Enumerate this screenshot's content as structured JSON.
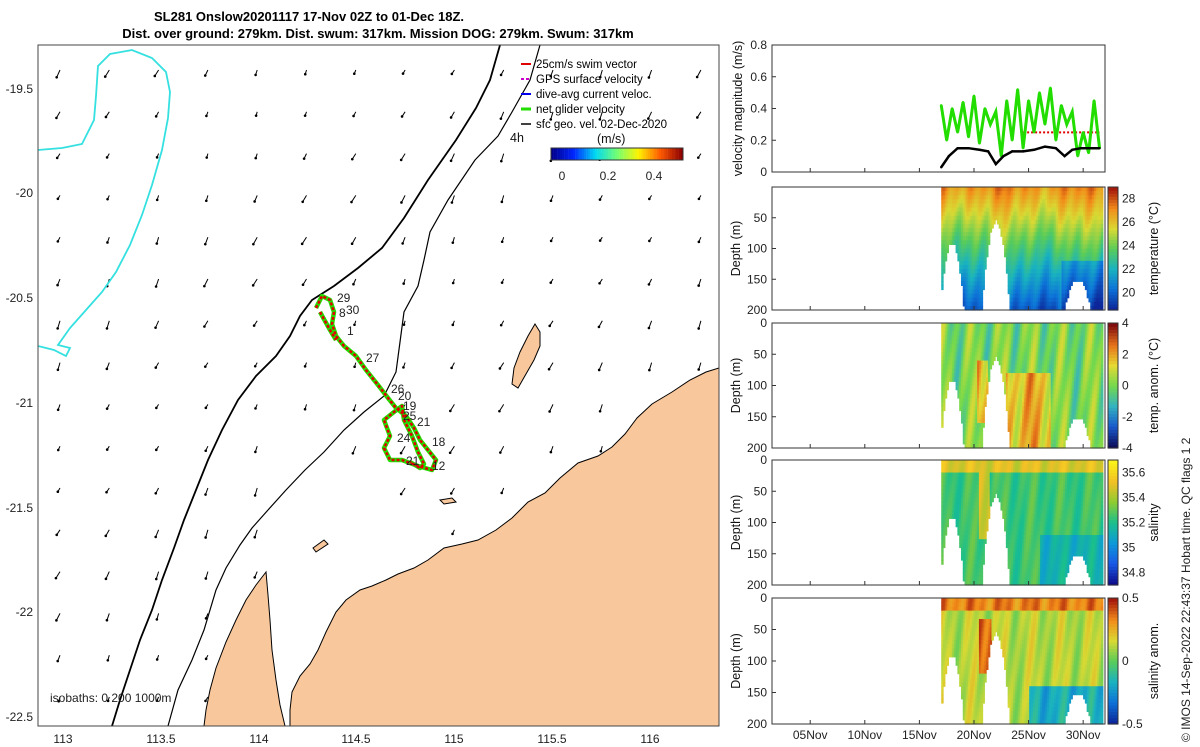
{
  "title": {
    "line1": "SL281 Onslow20201117 17-Nov 02Z to 01-Dec 18Z.",
    "line2": "Dist. over ground: 279km. Dist. swum: 317km. Mission DOG: 279km. Swum: 317km"
  },
  "colors": {
    "land": "#f9c79c",
    "coast": "#000000",
    "isobath_200": "#000000",
    "isobath_1000": "#34e0e0",
    "track": "#e00000",
    "net_velocity": "#22dd00",
    "sfc_geo_vectors": "#000000",
    "speed_line": "#000000",
    "swim_ref": "#e00000"
  },
  "map": {
    "legend": [
      {
        "label": "25cm/s swim vector",
        "color": "#e00000"
      },
      {
        "label": "GPS surface velocity",
        "color": "#cc00cc"
      },
      {
        "label": "dive-avg current veloc.",
        "color": "#0000ee"
      },
      {
        "label": "net glider velocity",
        "color": "#22dd00"
      },
      {
        "label": "sfc geo. vel. 02-Dec-2020",
        "color": "#000000"
      }
    ],
    "colorbar_title": "(m/s)",
    "colorbar_ticks": [
      "0",
      "0.2",
      "0.4"
    ],
    "colorbar_range": [
      0,
      0.5
    ],
    "time_marker": "4h",
    "isobath_label": "isobaths: 0   200  1000m",
    "xticks": [
      "113",
      "113.5",
      "114",
      "114.5",
      "115",
      "115.5",
      "116"
    ],
    "yticks": [
      "-19.5",
      "-20",
      "-20.5",
      "-21",
      "-21.5",
      "-22",
      "-22.5"
    ],
    "day_labels": [
      "29",
      "30",
      "8",
      "1",
      "27",
      "26",
      "20",
      "19",
      "25",
      "21",
      "18",
      "24",
      "21",
      "12"
    ]
  },
  "chart_data": [
    {
      "type": "line",
      "panel": "velocity",
      "ylabel": "velocity magnitude (m/s)",
      "ylim": [
        0,
        0.8
      ],
      "yticks": [
        "0",
        "0.2",
        "0.4",
        "0.6",
        "0.8"
      ],
      "x_unit": "days in Nov 2020",
      "xlim": [
        1.5,
        32
      ],
      "series": [
        {
          "name": "net glider velocity",
          "x": [
            17.0,
            17.5,
            18.0,
            18.5,
            19.0,
            19.5,
            20.0,
            20.5,
            21.0,
            21.5,
            22.0,
            22.5,
            23.0,
            23.5,
            24.0,
            24.5,
            25.0,
            25.5,
            26.0,
            26.5,
            27.0,
            27.5,
            28.0,
            28.5,
            29.0,
            29.5,
            30.0,
            30.5,
            31.0,
            31.5
          ],
          "y": [
            0.42,
            0.2,
            0.4,
            0.25,
            0.44,
            0.22,
            0.48,
            0.18,
            0.4,
            0.3,
            0.38,
            0.1,
            0.45,
            0.2,
            0.52,
            0.15,
            0.45,
            0.25,
            0.5,
            0.3,
            0.53,
            0.2,
            0.42,
            0.3,
            0.38,
            0.1,
            0.25,
            0.12,
            0.45,
            0.15
          ]
        },
        {
          "name": "",
          "x": [
            17.0,
            17.7,
            18.5,
            19.5,
            20.5,
            21.3,
            22.0,
            22.7,
            23.5,
            24.5,
            25.5,
            26.5,
            27.5,
            28.3,
            29.0,
            29.8,
            30.5,
            31.5
          ],
          "y": [
            0.03,
            0.1,
            0.15,
            0.15,
            0.14,
            0.13,
            0.05,
            0.1,
            0.13,
            0.13,
            0.14,
            0.16,
            0.15,
            0.1,
            0.14,
            0.15,
            0.15,
            0.15
          ]
        }
      ]
    },
    {
      "type": "heatmap",
      "panel": "temperature",
      "ylabel": "Depth (m)",
      "clabel": "temperature (°C)",
      "ylim": [
        200,
        0
      ],
      "yticks": [
        "50",
        "100",
        "150",
        "200"
      ],
      "cticks": [
        "20",
        "22",
        "24",
        "26",
        "28"
      ],
      "crange": [
        18.5,
        29
      ]
    },
    {
      "type": "heatmap",
      "panel": "temp_anom",
      "ylabel": "Depth (m)",
      "clabel": "temp. anom. (°C)",
      "ylim": [
        200,
        0
      ],
      "yticks": [
        "0",
        "50",
        "100",
        "150",
        "200"
      ],
      "cticks": [
        "-4",
        "-2",
        "0",
        "2",
        "4"
      ],
      "crange": [
        -4,
        4
      ]
    },
    {
      "type": "heatmap",
      "panel": "salinity",
      "ylabel": "Depth (m)",
      "clabel": "salinity",
      "ylim": [
        200,
        0
      ],
      "yticks": [
        "0",
        "50",
        "100",
        "150",
        "200"
      ],
      "cticks": [
        "34.8",
        "35",
        "35.2",
        "35.4",
        "35.6"
      ],
      "crange": [
        34.7,
        35.7
      ]
    },
    {
      "type": "heatmap",
      "panel": "sal_anom",
      "ylabel": "Depth (m)",
      "clabel": "salinity anom.",
      "ylim": [
        200,
        0
      ],
      "yticks": [
        "0",
        "50",
        "100",
        "150",
        "200"
      ],
      "cticks": [
        "-0.5",
        "0",
        "0.5"
      ],
      "crange": [
        -0.5,
        0.5
      ]
    }
  ],
  "time_axis": {
    "ticks": [
      {
        "day": 5,
        "label": "05Nov"
      },
      {
        "day": 10,
        "label": "10Nov"
      },
      {
        "day": 15,
        "label": "15Nov"
      },
      {
        "day": 20,
        "label": "20Nov"
      },
      {
        "day": 25,
        "label": "25Nov"
      },
      {
        "day": 30,
        "label": "30Nov"
      }
    ]
  },
  "footer": "© IMOS 14-Sep-2022 22:43:37 Hobart time. QC flags 1  2"
}
